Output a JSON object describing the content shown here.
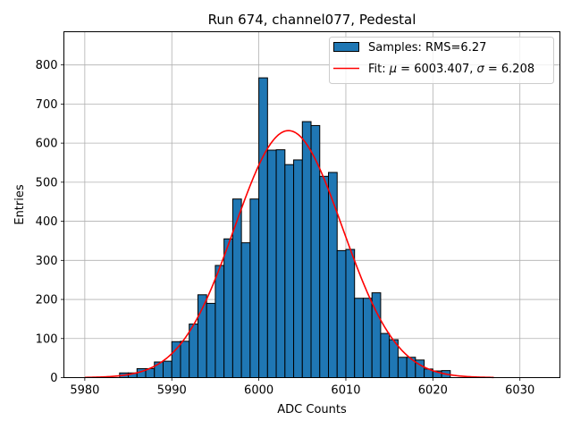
{
  "chart_data": {
    "type": "bar",
    "title": "Run 674, channel077, Pedestal",
    "xlabel": "ADC Counts",
    "ylabel": "Entries",
    "xlim": [
      5977.6,
      6034.6
    ],
    "ylim": [
      0,
      885
    ],
    "x_ticks": [
      5980,
      5990,
      6000,
      6010,
      6020,
      6030
    ],
    "y_ticks": [
      0,
      100,
      200,
      300,
      400,
      500,
      600,
      700,
      800
    ],
    "grid": true,
    "legend_position": "top-right",
    "bin_edges_start": 5984,
    "bin_width": 1,
    "bin_centers": [
      5984.5,
      5985.5,
      5986.5,
      5987.5,
      5988.5,
      5989.5,
      5990.5,
      5991.5,
      5992.5,
      5993.5,
      5994.5,
      5995.5,
      5996.5,
      5997.5,
      5998.5,
      5999.5,
      6000.5,
      6001.5,
      6002.5,
      6003.5,
      6004.5,
      6005.5,
      6006.5,
      6007.5,
      6008.5,
      6009.5,
      6010.5,
      6011.5,
      6012.5,
      6013.5,
      6014.5,
      6015.5,
      6016.5,
      6017.5,
      6018.5,
      6019.5,
      6020.5,
      6021.5
    ],
    "counts": [
      12,
      12,
      23,
      23,
      40,
      42,
      92,
      93,
      137,
      212,
      190,
      287,
      355,
      457,
      345,
      457,
      767,
      582,
      583,
      545,
      557,
      655,
      645,
      515,
      525,
      325,
      328,
      203,
      203,
      217,
      113,
      97,
      52,
      52,
      45,
      22,
      17,
      18
    ],
    "fit": {
      "mu": 6003.407,
      "sigma": 6.208,
      "amplitude": 632,
      "x_range": [
        5980,
        6027
      ]
    },
    "series": [
      {
        "name": "Samples: RMS=6.27",
        "kind": "histogram",
        "color": "#1f77b4",
        "edge_color": "#000000"
      },
      {
        "name_prefix": "Fit: ",
        "name_mu": "μ",
        "name_mid": " = 6003.407, ",
        "name_sigma": "σ",
        "name_suffix": " = 6.208",
        "kind": "line",
        "color": "#ff0000"
      }
    ]
  }
}
